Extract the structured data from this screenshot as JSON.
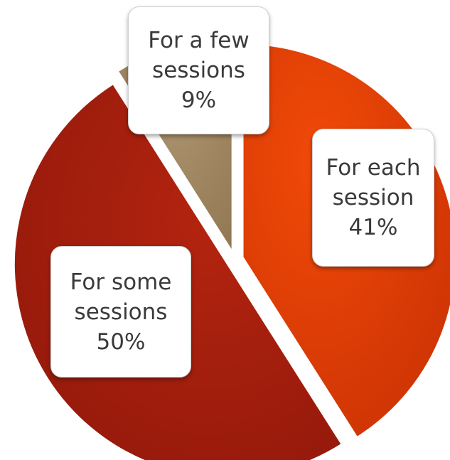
{
  "chart_data": {
    "type": "pie",
    "slices": [
      {
        "label_line1": "For each",
        "label_line2": "session",
        "percent_text": "41%",
        "value": 41,
        "color": "#e03c06"
      },
      {
        "label_line1": "For some",
        "label_line2": "sessions",
        "percent_text": "50%",
        "value": 50,
        "color": "#a51d0e"
      },
      {
        "label_line1": "For a few",
        "label_line2": "sessions",
        "percent_text": "9%",
        "value": 9,
        "color": "#a58a63"
      }
    ],
    "exploded": true,
    "legend": "none"
  }
}
